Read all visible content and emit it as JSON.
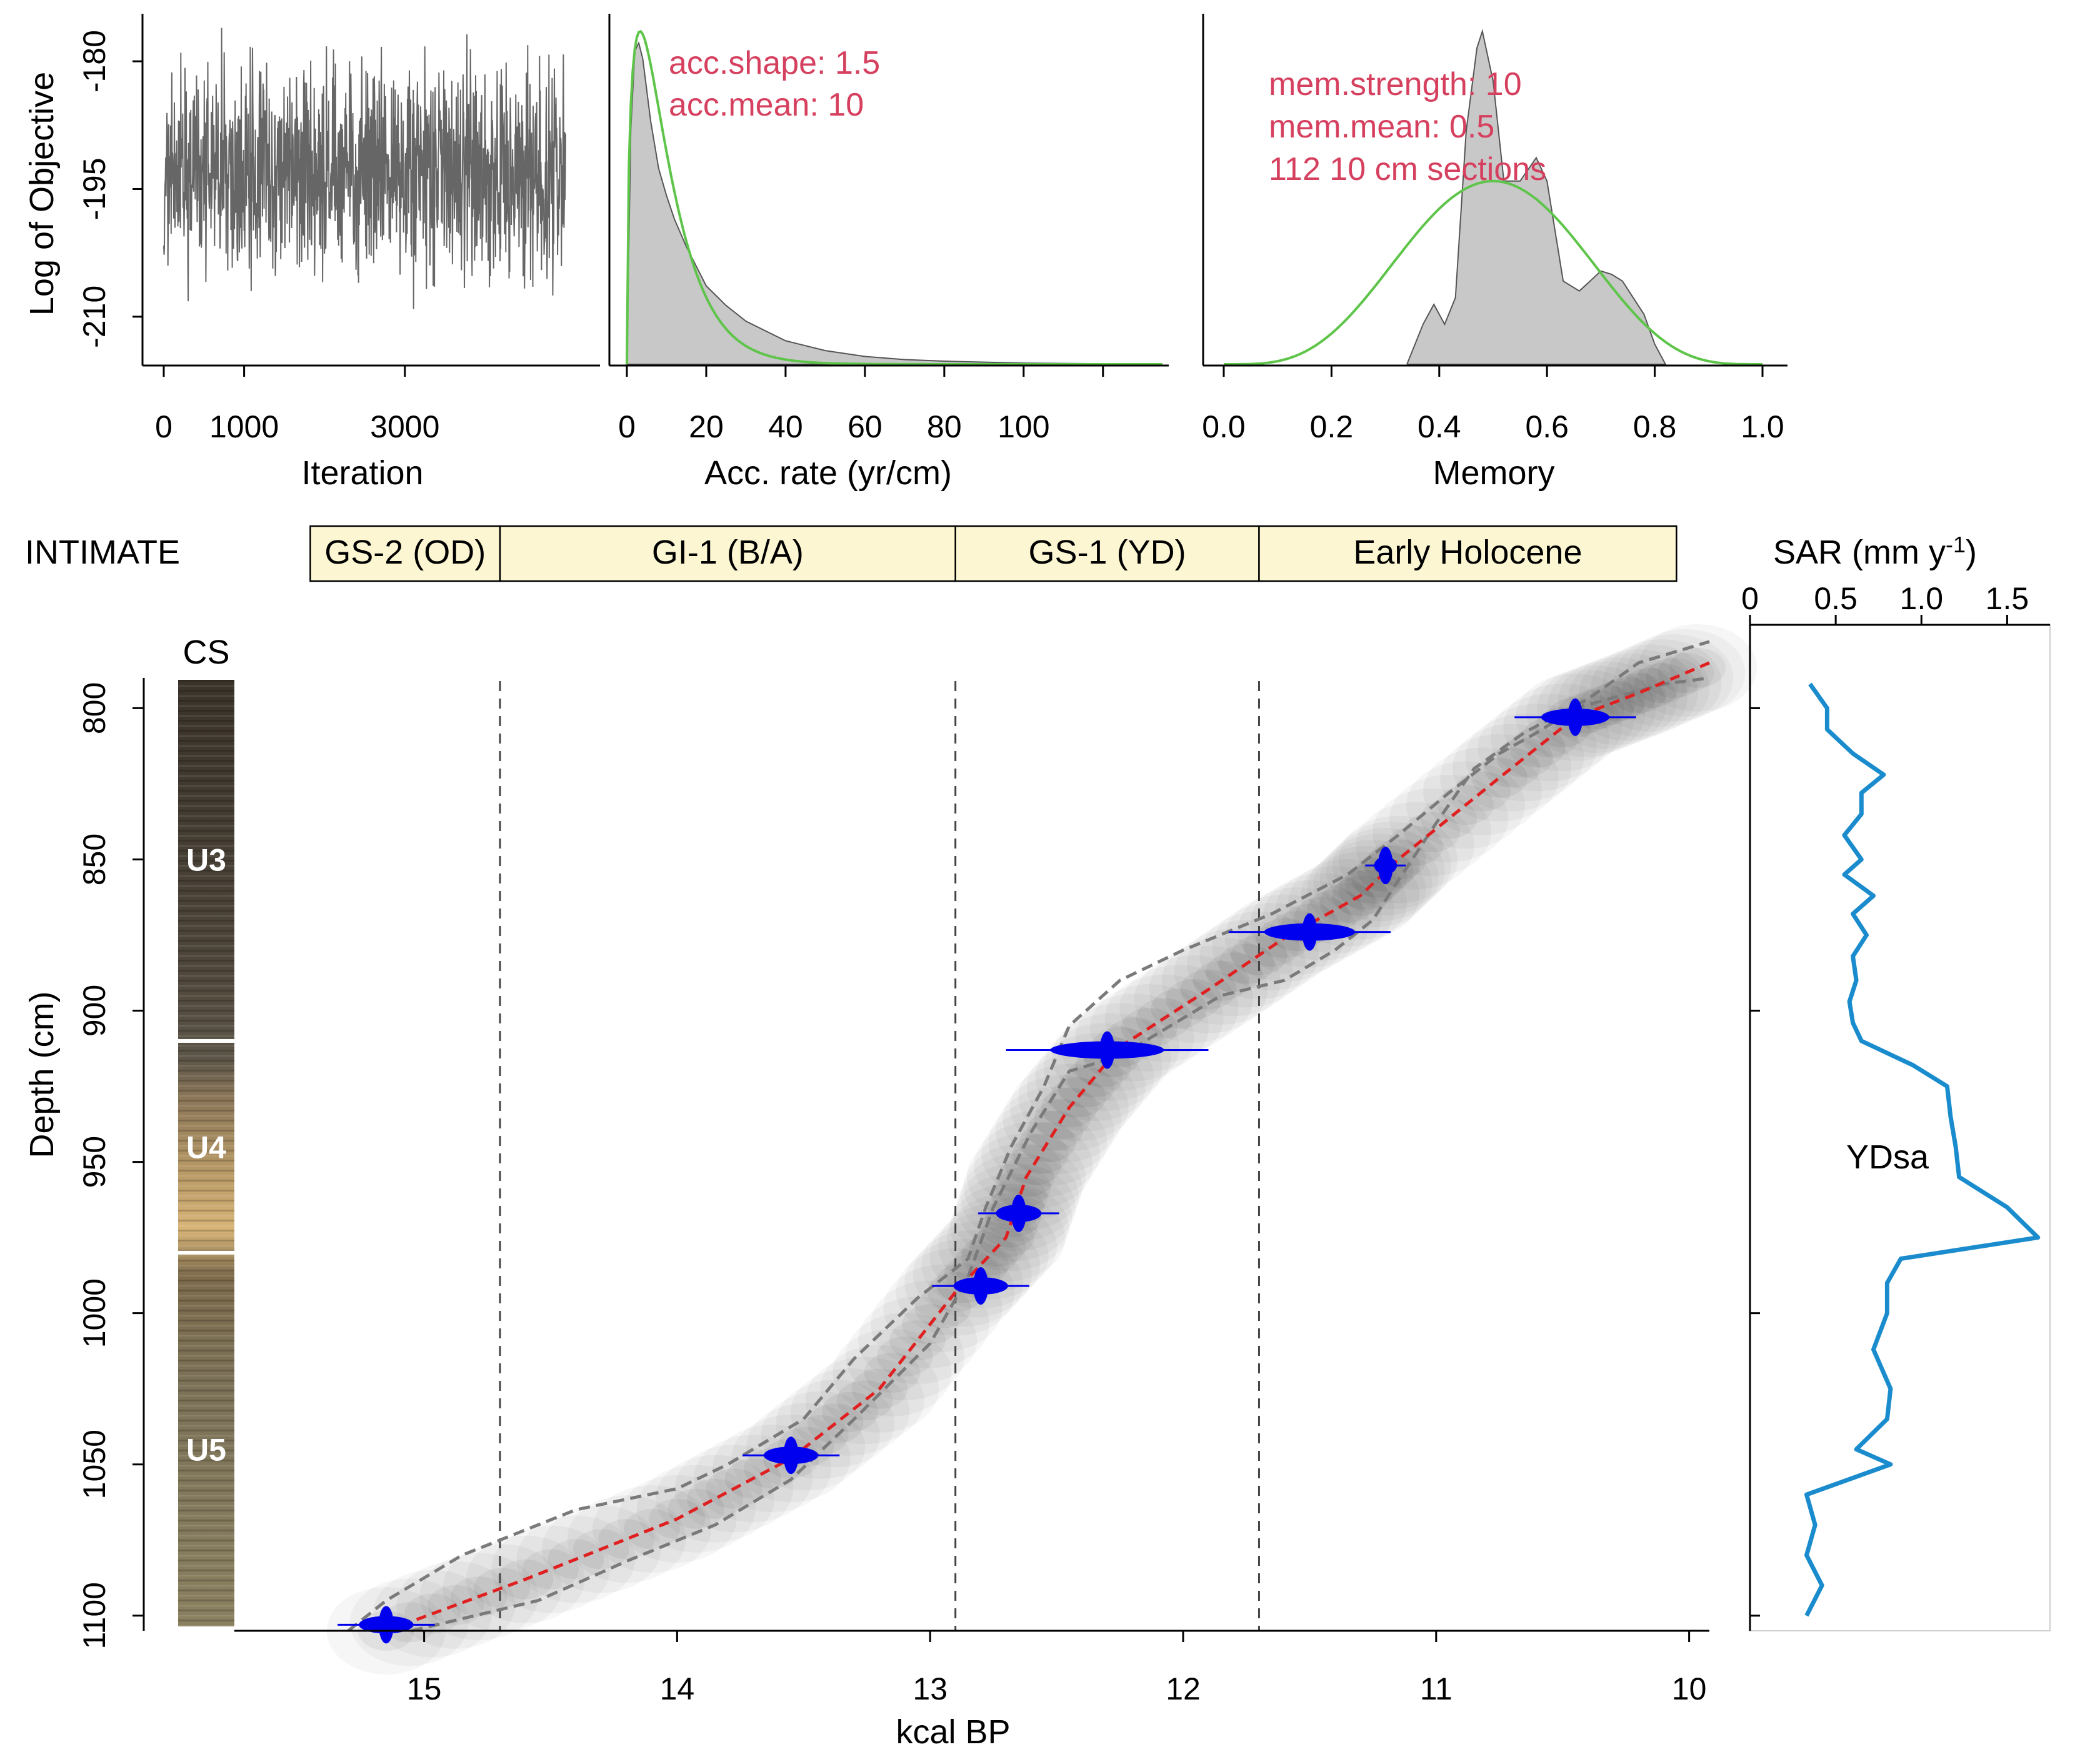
{
  "chart_data": [
    {
      "type": "line",
      "panel": "mcmc-trace",
      "xlabel": "Iteration",
      "ylabel": "Log of Objective",
      "xticks": [
        0,
        1000,
        3000
      ],
      "yticks": [
        -180,
        -195,
        -210
      ],
      "xlim": [
        0,
        5000
      ],
      "ylim": [
        -215,
        -175
      ],
      "n_iterations": 5000,
      "mean": -193,
      "spread": 6,
      "color": "#666666"
    },
    {
      "type": "area",
      "panel": "accumulation-rate",
      "xlabel": "Acc. rate (yr/cm)",
      "xticks": [
        0,
        20,
        40,
        60,
        80,
        100
      ],
      "xlim": [
        0,
        135
      ],
      "annotations": [
        "acc.shape:  1.5",
        "acc.mean:  10"
      ],
      "posterior": {
        "x": [
          0,
          1,
          2,
          3,
          4,
          6,
          8,
          10,
          12,
          15,
          20,
          25,
          30,
          40,
          50,
          60,
          70,
          80,
          100,
          135
        ],
        "y": [
          0.0,
          0.6,
          0.8,
          0.82,
          0.78,
          0.62,
          0.5,
          0.43,
          0.37,
          0.3,
          0.2,
          0.15,
          0.11,
          0.06,
          0.035,
          0.02,
          0.012,
          0.008,
          0.003,
          0.0
        ]
      },
      "prior": {
        "shape": 1.5,
        "mean": 10
      },
      "colors": {
        "posterior": "#c8c8c8",
        "prior": "#5ec44a"
      }
    },
    {
      "type": "area",
      "panel": "memory",
      "xlabel": "Memory",
      "xticks": [
        0.0,
        0.2,
        0.4,
        0.6,
        0.8,
        1.0
      ],
      "xlim": [
        0,
        1
      ],
      "annotations": [
        "mem.strength: 10",
        "mem.mean: 0.5",
        "112 10 cm sections"
      ],
      "posterior": {
        "x": [
          0.34,
          0.37,
          0.39,
          0.41,
          0.43,
          0.45,
          0.47,
          0.48,
          0.5,
          0.52,
          0.55,
          0.58,
          0.6,
          0.63,
          0.66,
          0.68,
          0.7,
          0.72,
          0.74,
          0.76,
          0.78,
          0.8,
          0.82
        ],
        "y": [
          0.0,
          0.12,
          0.18,
          0.12,
          0.2,
          0.7,
          0.95,
          1.0,
          0.85,
          0.55,
          0.55,
          0.62,
          0.55,
          0.25,
          0.22,
          0.25,
          0.28,
          0.27,
          0.25,
          0.2,
          0.15,
          0.06,
          0.0
        ]
      },
      "prior": {
        "strength": 10,
        "mean": 0.5
      },
      "colors": {
        "posterior": "#c8c8c8",
        "prior": "#5ec44a"
      }
    },
    {
      "type": "line",
      "panel": "age-depth",
      "xlabel": "kcal BP",
      "ylabel": "Depth (cm)",
      "xticks": [
        15,
        14,
        13,
        12,
        11,
        10
      ],
      "yticks": [
        800,
        850,
        900,
        950,
        1000,
        1050,
        1100
      ],
      "xlim": [
        15.75,
        9.92
      ],
      "ylim": [
        1105,
        790
      ],
      "median": {
        "age": [
          15.15,
          14.6,
          14.0,
          13.55,
          13.2,
          12.9,
          12.7,
          12.62,
          12.45,
          12.25,
          11.9,
          11.6,
          11.3,
          11.15,
          10.75,
          10.45,
          10.2,
          9.92
        ],
        "depth": [
          1105,
          1088,
          1068,
          1048,
          1025,
          993,
          975,
          955,
          932,
          912,
          893,
          876,
          862,
          850,
          823,
          803,
          795,
          785
        ]
      },
      "ci_lower": {
        "age": [
          15.3,
          15.15,
          14.85,
          14.4,
          14.0,
          13.8,
          13.5,
          13.3,
          13.05,
          12.85,
          12.78,
          12.68,
          12.55,
          12.45,
          12.25,
          12.0,
          11.65,
          11.35,
          11.15,
          10.95,
          10.75,
          10.6,
          10.45,
          10.1,
          9.92
        ],
        "depth": [
          1105,
          1095,
          1080,
          1065,
          1058,
          1050,
          1035,
          1015,
          995,
          982,
          965,
          945,
          925,
          905,
          890,
          880,
          868,
          855,
          842,
          828,
          815,
          808,
          800,
          792,
          790
        ]
      },
      "ci_upper": {
        "age": [
          15.05,
          14.8,
          14.55,
          14.2,
          13.85,
          13.55,
          13.3,
          13.0,
          12.85,
          12.75,
          12.6,
          12.45,
          12.25,
          12.05,
          11.85,
          11.6,
          11.4,
          11.25,
          11.15,
          11.0,
          10.85,
          10.65,
          10.4,
          10.2,
          9.92
        ],
        "depth": [
          1105,
          1100,
          1095,
          1082,
          1070,
          1055,
          1035,
          1010,
          988,
          965,
          940,
          920,
          915,
          905,
          895,
          890,
          880,
          870,
          857,
          838,
          820,
          808,
          797,
          785,
          778
        ]
      },
      "dated_samples": [
        {
          "age": 15.15,
          "depth": 1103,
          "spread": 0.12
        },
        {
          "age": 13.55,
          "depth": 1047,
          "spread": 0.12
        },
        {
          "age": 12.8,
          "depth": 991,
          "spread": 0.12
        },
        {
          "age": 12.65,
          "depth": 967,
          "spread": 0.1
        },
        {
          "age": 12.3,
          "depth": 913,
          "spread": 0.25
        },
        {
          "age": 11.5,
          "depth": 874,
          "spread": 0.2
        },
        {
          "age": 11.2,
          "depth": 852,
          "spread": 0.05
        },
        {
          "age": 10.45,
          "depth": 803,
          "spread": 0.15
        }
      ],
      "stage_boundaries": [
        14.7,
        12.9,
        11.7
      ],
      "colors": {
        "median": "#e02020",
        "ci": "#7a7a7a",
        "dates": "#0000ee",
        "boundaries": "#444444"
      }
    },
    {
      "type": "line",
      "panel": "sediment-accumulation-rate",
      "xlabel": "SAR (mm y",
      "xlabel_superscript": "-1",
      "xlabel_close": ")",
      "xticks": [
        0,
        0.5,
        1.0,
        1.5
      ],
      "xlim": [
        0,
        1.75
      ],
      "ylim": [
        1105,
        790
      ],
      "depth": [
        792,
        800,
        807,
        815,
        822,
        828,
        835,
        842,
        850,
        855,
        862,
        868,
        875,
        882,
        890,
        897,
        904,
        910,
        918,
        925,
        935,
        945,
        955,
        965,
        975,
        982,
        990,
        1000,
        1012,
        1025,
        1035,
        1045,
        1050,
        1060,
        1070,
        1080,
        1090,
        1100
      ],
      "sar": [
        0.35,
        0.45,
        0.45,
        0.6,
        0.78,
        0.65,
        0.65,
        0.55,
        0.65,
        0.55,
        0.72,
        0.6,
        0.68,
        0.6,
        0.62,
        0.58,
        0.6,
        0.65,
        0.95,
        1.15,
        1.17,
        1.2,
        1.22,
        1.5,
        1.68,
        0.88,
        0.8,
        0.8,
        0.72,
        0.82,
        0.8,
        0.62,
        0.82,
        0.33,
        0.38,
        0.33,
        0.42,
        0.33
      ],
      "annotation": "YDsa",
      "annotation_depth": 962,
      "color": "#1a8ccd"
    }
  ],
  "intimate": {
    "label": "INTIMATE",
    "stages": [
      {
        "name": "GS-2 (OD)",
        "from": 15.45,
        "to": 14.7
      },
      {
        "name": "GI-1 (B/A)",
        "from": 14.7,
        "to": 12.9
      },
      {
        "name": "GS-1 (YD)",
        "from": 12.9,
        "to": 11.7
      },
      {
        "name": "Early Holocene",
        "from": 11.7,
        "to": 10.05
      }
    ]
  },
  "core": {
    "label": "CS",
    "units": [
      {
        "name": "U3",
        "depth": 850
      },
      {
        "name": "U4",
        "depth": 945
      },
      {
        "name": "U5",
        "depth": 1045
      }
    ],
    "unit_boundaries": [
      910,
      980
    ]
  }
}
